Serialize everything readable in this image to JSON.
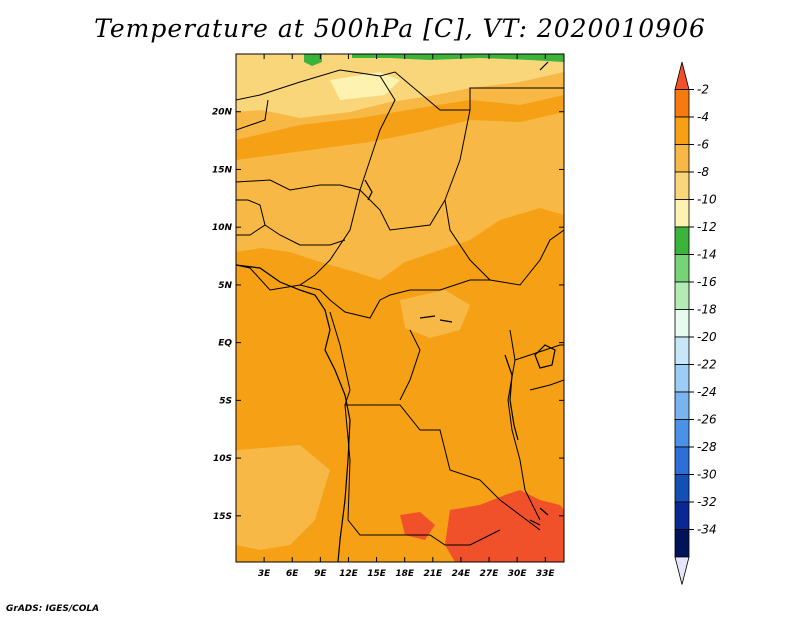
{
  "title": "Temperature at 500hPa [C], VT: 2020010906",
  "credit": "GrADS: IGES/COLA",
  "chart_data": {
    "type": "heatmap",
    "variable": "Temperature at 500hPa",
    "units": "C",
    "valid_time": "2020010906",
    "x_range_lon": [
      0,
      35
    ],
    "y_range_lat": [
      -19,
      25
    ],
    "x_ticks": [
      {
        "value": 3,
        "label": "3E"
      },
      {
        "value": 6,
        "label": "6E"
      },
      {
        "value": 9,
        "label": "9E"
      },
      {
        "value": 12,
        "label": "12E"
      },
      {
        "value": 15,
        "label": "15E"
      },
      {
        "value": 18,
        "label": "18E"
      },
      {
        "value": 21,
        "label": "21E"
      },
      {
        "value": 24,
        "label": "24E"
      },
      {
        "value": 27,
        "label": "27E"
      },
      {
        "value": 30,
        "label": "30E"
      },
      {
        "value": 33,
        "label": "33E"
      }
    ],
    "y_ticks": [
      {
        "value": 20,
        "label": "20N"
      },
      {
        "value": 15,
        "label": "15N"
      },
      {
        "value": 10,
        "label": "10N"
      },
      {
        "value": 5,
        "label": "5N"
      },
      {
        "value": 0,
        "label": "EQ"
      },
      {
        "value": -5,
        "label": "5S"
      },
      {
        "value": -10,
        "label": "10S"
      },
      {
        "value": -15,
        "label": "15S"
      }
    ],
    "colorbar": {
      "labels": [
        "-2",
        "-4",
        "-6",
        "-8",
        "-10",
        "-12",
        "-14",
        "-16",
        "-18",
        "-20",
        "-22",
        "-24",
        "-26",
        "-28",
        "-30",
        "-32",
        "-34"
      ],
      "colors": [
        "#f0502a",
        "#f57a10",
        "#f5a015",
        "#f8b845",
        "#fad67a",
        "#fdf2b0",
        "#3cb43c",
        "#78d278",
        "#b4ebb4",
        "#e6faf0",
        "#c8e6fa",
        "#9ccdf5",
        "#78b4f0",
        "#4b91e6",
        "#2d6ed7",
        "#1450b4",
        "#0a2891",
        "#00145a",
        "#e6e6fa"
      ]
    },
    "regions": [
      {
        "name": "background",
        "value_band": "-4 to -6"
      },
      {
        "name": "far-north",
        "value_band": "-8 to -10"
      },
      {
        "name": "north-band",
        "value_band": "-6 to -8"
      },
      {
        "name": "arctic-top",
        "value_band": "-12 to -14"
      },
      {
        "name": "southeast-warm",
        "value_band": "-2 to -4"
      }
    ]
  }
}
